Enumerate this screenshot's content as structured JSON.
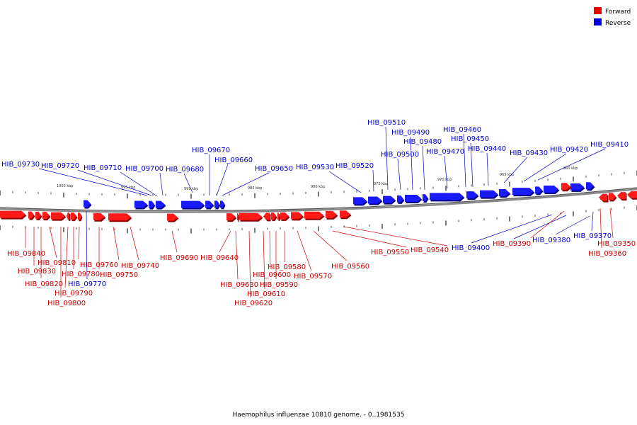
{
  "legend": [
    {
      "name": "Forward",
      "color": "#ee0000"
    },
    {
      "name": "Reverse",
      "color": "#0000ee"
    }
  ],
  "caption": "Haemophilus influenzae 10810 genome. - 0..1981535",
  "ticks": [
    "1000 kbp",
    "995 kbp",
    "990 kbp",
    "985 kbp",
    "980 kbp",
    "975 kbp",
    "970 kbp",
    "965 kbp",
    "960 kbp"
  ],
  "genes_reverse": [
    "HIB_09730",
    "HIB_09720",
    "HIB_09710",
    "HIB_09700",
    "HIB_09680",
    "HIB_09670",
    "HIB_09660",
    "HIB_09650",
    "HIB_09530",
    "HIB_09520",
    "HIB_09510",
    "HIB_09490",
    "HIB_09500",
    "HIB_09480",
    "HIB_09470",
    "HIB_09460",
    "HIB_09450",
    "HIB_09440",
    "HIB_09430",
    "HIB_09420",
    "HIB_09410",
    "HIB_09770",
    "HIB_09400",
    "HIB_09380",
    "HIB_09370"
  ],
  "genes_forward": [
    "HIB_09840",
    "HIB_09830",
    "HIB_09820",
    "HIB_09810",
    "HIB_09800",
    "HIB_09790",
    "HIB_09780",
    "HIB_09760",
    "HIB_09750",
    "HIB_09740",
    "HIB_09690",
    "HIB_09640",
    "HIB_09630",
    "HIB_09620",
    "HIB_09610",
    "HIB_09600",
    "HIB_09590",
    "HIB_09580",
    "HIB_09570",
    "HIB_09560",
    "HIB_09550",
    "HIB_09540",
    "HIB_09390",
    "HIB_09360",
    "HIB_09350"
  ]
}
